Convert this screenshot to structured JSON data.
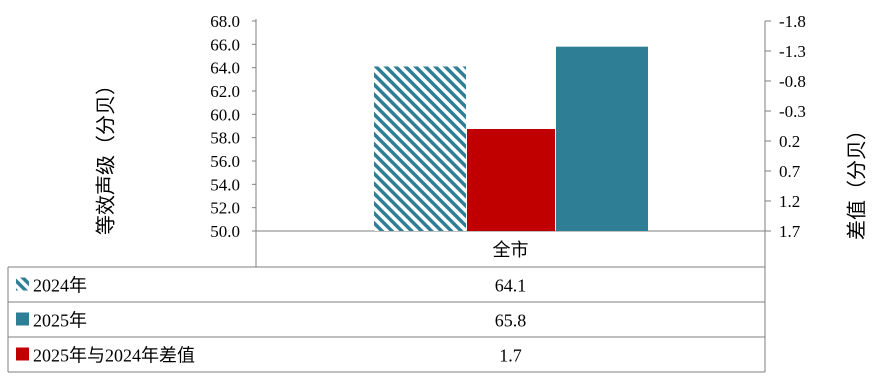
{
  "chart_data": {
    "type": "bar",
    "categories": [
      "全市"
    ],
    "series": [
      {
        "name": "2024年",
        "values": [
          64.1
        ],
        "axis": "left",
        "color": "#2E7E95",
        "pattern": "hatch"
      },
      {
        "name": "2025年",
        "values": [
          65.8
        ],
        "axis": "left",
        "color": "#2E7E95",
        "pattern": "solid"
      },
      {
        "name": "2025年与2024年差值",
        "values": [
          1.7
        ],
        "axis": "right",
        "color": "#C00000",
        "pattern": "solid"
      }
    ],
    "ylabel": "等效声级（分贝）",
    "ylabel_right": "差值（分贝）",
    "ylim": [
      50.0,
      68.0
    ],
    "ylim_right": [
      -1.8,
      1.7
    ],
    "right_axis_reversed": true,
    "yticks": [
      "50.0",
      "52.0",
      "54.0",
      "56.0",
      "58.0",
      "60.0",
      "62.0",
      "64.0",
      "66.0",
      "68.0"
    ],
    "yticks_right": [
      "-1.8",
      "-1.3",
      "-0.8",
      "-0.3",
      "0.2",
      "0.7",
      "1.2",
      "1.7"
    ],
    "table": [
      {
        "label": "2024年",
        "value": "64.1"
      },
      {
        "label": "2025年",
        "value": "65.8"
      },
      {
        "label": "2025年与2024年差值",
        "value": "1.7"
      }
    ],
    "grid": false,
    "legend": "data-table"
  }
}
